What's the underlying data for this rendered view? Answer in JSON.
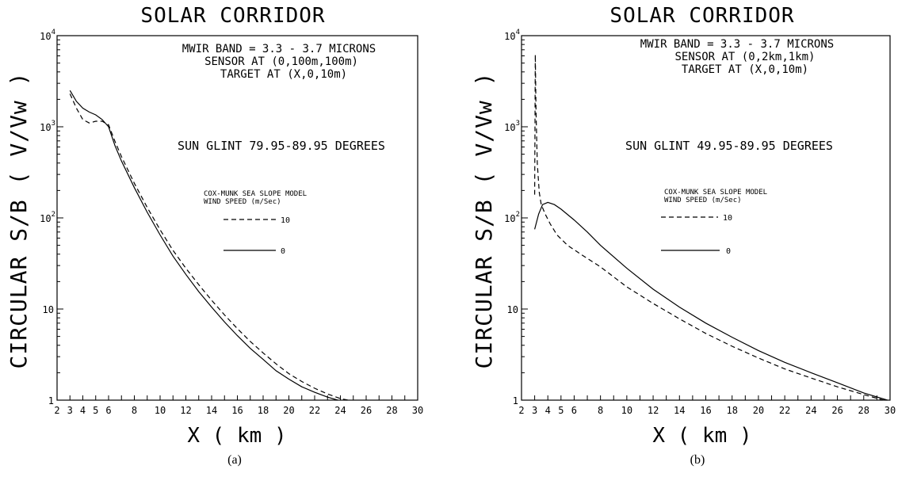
{
  "chart_data": [
    {
      "type": "line",
      "panel_label": "(a)",
      "title": "SOLAR CORRIDOR",
      "xlabel": "X ( km )",
      "ylabel": "CIRCULAR S/B ( V/Vw )",
      "xlim": [
        2,
        30
      ],
      "ylim": [
        1,
        10000
      ],
      "yscale": "log",
      "xticks": [
        "2",
        "3",
        "4",
        "5",
        "6",
        "8",
        "10",
        "12",
        "14",
        "16",
        "18",
        "20",
        "22",
        "24",
        "26",
        "28",
        "30"
      ],
      "yticks": [
        {
          "base": "1",
          "exp": ""
        },
        {
          "base": "10",
          "exp": ""
        },
        {
          "base": "10",
          "exp": "2"
        },
        {
          "base": "10",
          "exp": "3"
        },
        {
          "base": "10",
          "exp": "4"
        }
      ],
      "annotations": [
        "MWIR BAND = 3.3 - 3.7 MICRONS",
        "SENSOR AT (0,100m,100m)",
        "TARGET AT (X,0,10m)"
      ],
      "glint_note": "SUN GLINT 79.95-89.95 DEGREES",
      "legend": {
        "title_lines": [
          "COX-MUNK SEA SLOPE MODEL",
          "WIND SPEED (m/Sec)"
        ],
        "entries": [
          {
            "style": "dashed",
            "label": "10"
          },
          {
            "style": "solid",
            "label": "0"
          }
        ]
      },
      "series": [
        {
          "style": "solid",
          "x": [
            3.0,
            3.5,
            4.0,
            4.5,
            5.0,
            5.5,
            6.0,
            6.5,
            7.0,
            8.0,
            9.0,
            10.0,
            11.0,
            12.0,
            13.0,
            14.0,
            15.0,
            16.0,
            17.0,
            18.0,
            19.0,
            20.0,
            21.0,
            22.0,
            23.0,
            23.8
          ],
          "y": [
            2500,
            1900,
            1600,
            1450,
            1350,
            1200,
            1000,
            620,
            420,
            215,
            115,
            65,
            38,
            24,
            15.5,
            10.5,
            7.2,
            5.1,
            3.7,
            2.8,
            2.1,
            1.7,
            1.4,
            1.22,
            1.08,
            1.0
          ]
        },
        {
          "style": "dashed",
          "x": [
            3.0,
            3.5,
            4.0,
            4.5,
            5.0,
            5.5,
            6.0,
            6.5,
            7.0,
            8.0,
            9.0,
            10.0,
            11.0,
            12.0,
            13.0,
            14.0,
            15.0,
            16.0,
            17.0,
            18.0,
            19.0,
            20.0,
            21.0,
            22.0,
            23.0,
            24.0,
            24.6
          ],
          "y": [
            2300,
            1600,
            1200,
            1100,
            1150,
            1150,
            1050,
            690,
            470,
            240,
            130,
            74,
            44,
            28,
            18.5,
            12.5,
            8.6,
            6.1,
            4.4,
            3.3,
            2.5,
            1.95,
            1.6,
            1.35,
            1.17,
            1.04,
            1.0
          ]
        }
      ]
    },
    {
      "type": "line",
      "panel_label": "(b)",
      "title": "SOLAR CORRIDOR",
      "xlabel": "X ( km )",
      "ylabel": "CIRCULAR S/B ( V/Vw )",
      "xlim": [
        2,
        30
      ],
      "ylim": [
        1,
        10000
      ],
      "yscale": "log",
      "xticks": [
        "2",
        "3",
        "4",
        "5",
        "6",
        "8",
        "10",
        "12",
        "14",
        "16",
        "18",
        "20",
        "22",
        "24",
        "26",
        "28",
        "30"
      ],
      "yticks": [
        {
          "base": "1",
          "exp": ""
        },
        {
          "base": "10",
          "exp": ""
        },
        {
          "base": "10",
          "exp": "2"
        },
        {
          "base": "10",
          "exp": "3"
        },
        {
          "base": "10",
          "exp": "4"
        }
      ],
      "annotations": [
        "MWIR BAND = 3.3 - 3.7 MICRONS",
        "SENSOR AT (0,2km,1km)",
        "TARGET AT (X,0,10m)"
      ],
      "glint_note": "SUN GLINT 49.95-89.95 DEGREES",
      "legend": {
        "title_lines": [
          "COX-MUNK SEA SLOPE MODEL",
          "WIND SPEED (m/Sec)"
        ],
        "entries": [
          {
            "style": "dashed",
            "label": "10"
          },
          {
            "style": "solid",
            "label": "0"
          }
        ]
      },
      "series": [
        {
          "style": "solid",
          "x": [
            3.0,
            3.3,
            3.6,
            4.0,
            4.5,
            5.0,
            6.0,
            7.0,
            8.0,
            10.0,
            12.0,
            14.0,
            16.0,
            18.0,
            20.0,
            22.0,
            24.0,
            26.0,
            28.0,
            29.8
          ],
          "y": [
            75,
            110,
            140,
            148,
            140,
            125,
            95,
            70,
            50,
            28,
            16.5,
            10.5,
            7.0,
            4.9,
            3.5,
            2.6,
            2.0,
            1.55,
            1.2,
            1.0
          ]
        },
        {
          "style": "dashed",
          "x": [
            3.0,
            3.05,
            3.1,
            3.2,
            3.35,
            3.5,
            3.8,
            4.2,
            4.7,
            5.5,
            6.5,
            8.0,
            10.0,
            12.0,
            14.0,
            16.0,
            18.0,
            20.0,
            22.0,
            24.0,
            26.0,
            28.0,
            29.5
          ],
          "y": [
            180,
            6200,
            1500,
            400,
            190,
            140,
            110,
            85,
            65,
            50,
            40,
            29,
            17.5,
            11.5,
            7.8,
            5.4,
            3.9,
            2.9,
            2.2,
            1.75,
            1.4,
            1.15,
            1.0
          ]
        }
      ]
    }
  ]
}
